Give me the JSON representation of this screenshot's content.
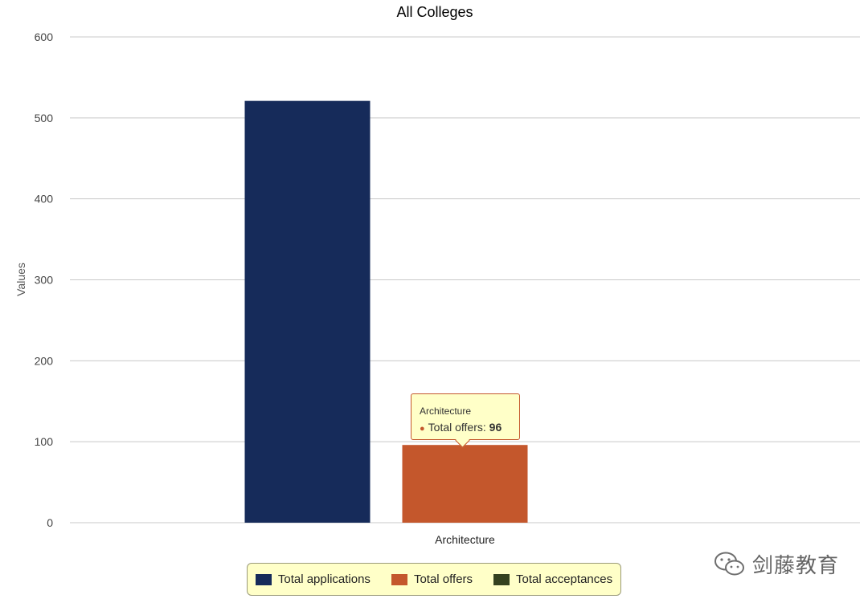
{
  "chart_data": {
    "type": "bar",
    "title": "All Colleges",
    "xlabel": "",
    "ylabel": "Values",
    "categories": [
      "Architecture"
    ],
    "series": [
      {
        "name": "Total applications",
        "values": [
          521
        ],
        "color": "#162b5a"
      },
      {
        "name": "Total offers",
        "values": [
          96
        ],
        "color": "#c4572c"
      },
      {
        "name": "Total acceptances",
        "values": [
          0
        ],
        "color": "#34411f"
      }
    ],
    "ylim": [
      0,
      600
    ],
    "yticks": [
      0,
      100,
      200,
      300,
      400,
      500,
      600
    ],
    "grid": true,
    "legend_position": "bottom-center"
  },
  "tooltip": {
    "title": "Architecture",
    "label": "Total offers: ",
    "value": "96"
  },
  "watermark": {
    "text": "剑藤教育",
    "icon": "wechat-icon"
  }
}
